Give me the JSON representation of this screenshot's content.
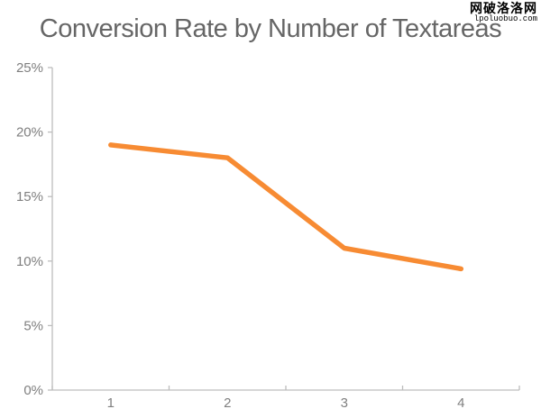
{
  "watermark": {
    "line1": "网破洛洛网",
    "line2": "lpoluobuo.com"
  },
  "chart_data": {
    "type": "line",
    "title": "Conversion Rate by Number of Textareas",
    "categories": [
      "1",
      "2",
      "3",
      "4"
    ],
    "values": [
      19,
      18,
      11,
      9.4
    ],
    "series": [
      {
        "name": "Conversion Rate",
        "values": [
          19,
          18,
          11,
          9.4
        ]
      }
    ],
    "xlabel": "",
    "ylabel": "",
    "ylim": [
      0,
      25
    ],
    "ytick_step": 5,
    "ytick_labels": [
      "0%",
      "5%",
      "10%",
      "15%",
      "20%",
      "25%"
    ],
    "grid": false,
    "legend_position": "none",
    "colors": {
      "line": "#F78B33",
      "axis": "#BDBDBD",
      "tick_label": "#7F7F7F",
      "title": "#666666"
    }
  }
}
